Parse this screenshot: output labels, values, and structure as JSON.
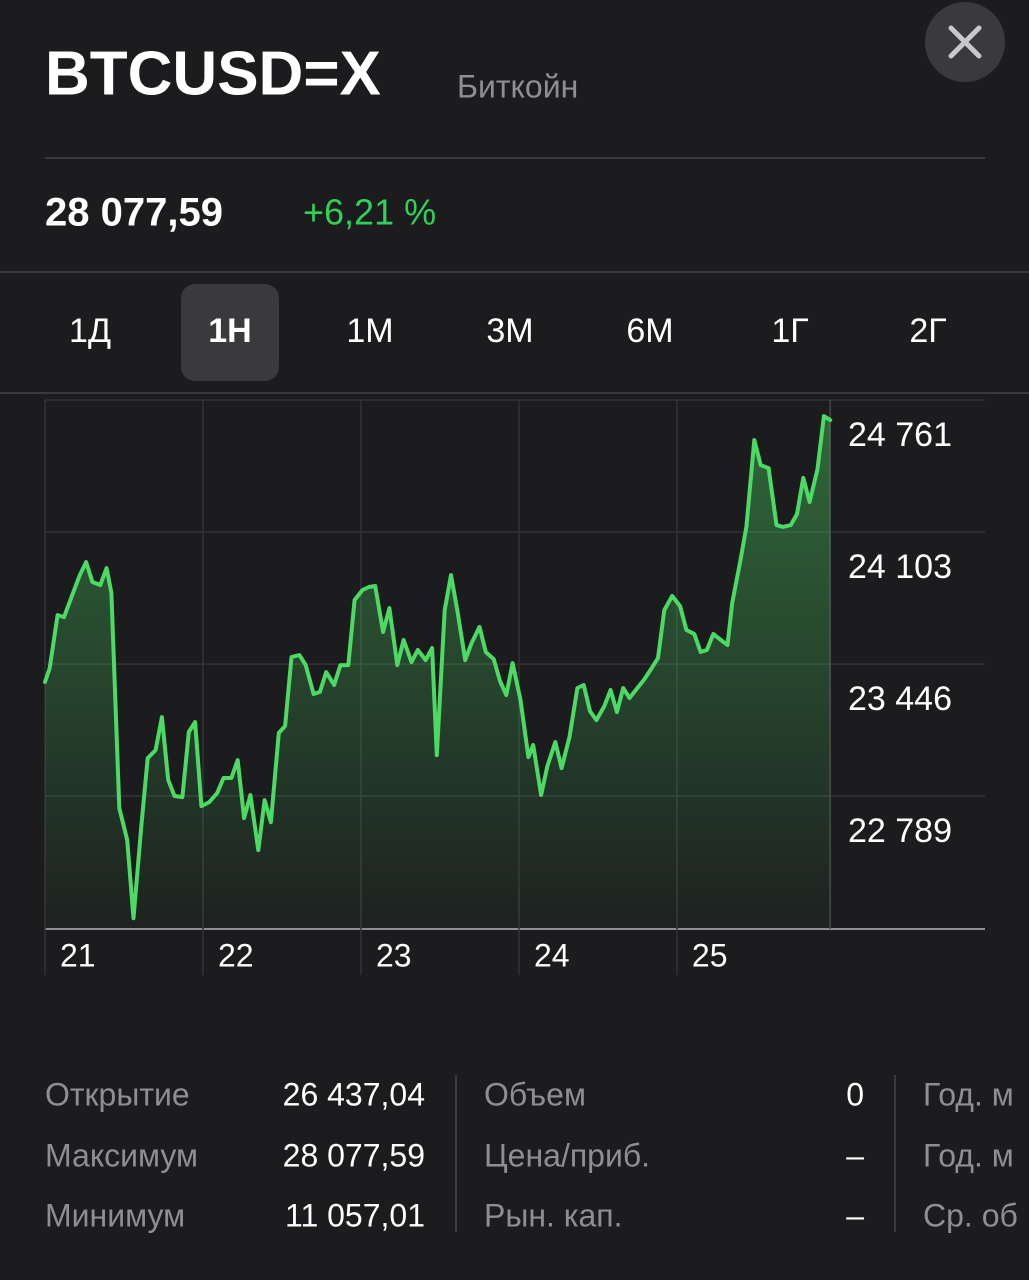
{
  "header": {
    "title": "BTCUSD=X",
    "subtitle": "Биткойн",
    "price": "28 077,59",
    "change": "+6,21 %"
  },
  "tabs": {
    "items": [
      "1Д",
      "1Н",
      "1М",
      "3М",
      "6М",
      "1Г",
      "2Г"
    ],
    "selected": 1
  },
  "chart_data": {
    "type": "area",
    "color": "#4cd964",
    "x": [
      21.0,
      21.03,
      21.08,
      21.12,
      21.17,
      21.22,
      21.26,
      21.3,
      21.35,
      21.39,
      21.42,
      21.47,
      21.52,
      21.56,
      21.61,
      21.65,
      21.7,
      21.74,
      21.78,
      21.82,
      21.87,
      21.91,
      21.95,
      21.99,
      22.04,
      22.09,
      22.13,
      22.18,
      22.22,
      22.26,
      22.3,
      22.35,
      22.39,
      22.43,
      22.48,
      22.52,
      22.56,
      22.61,
      22.65,
      22.7,
      22.74,
      22.78,
      22.83,
      22.87,
      22.92,
      22.96,
      23.01,
      23.05,
      23.09,
      23.14,
      23.18,
      23.23,
      23.27,
      23.32,
      23.36,
      23.41,
      23.45,
      23.48,
      23.53,
      23.57,
      23.61,
      23.66,
      23.7,
      23.75,
      23.79,
      23.84,
      23.88,
      23.92,
      23.96,
      24.01,
      24.06,
      24.09,
      24.14,
      24.18,
      24.23,
      24.27,
      24.32,
      24.37,
      24.41,
      24.45,
      24.49,
      24.54,
      24.58,
      24.62,
      24.66,
      24.7,
      24.75,
      24.79,
      24.84,
      24.88,
      24.92,
      24.97,
      25.02,
      25.06,
      25.11,
      25.15,
      25.19,
      25.23,
      25.27,
      25.32,
      25.35,
      25.4,
      25.44,
      25.49,
      25.53,
      25.58,
      25.63,
      25.67,
      25.72,
      25.76,
      25.8,
      25.84,
      25.89,
      25.93,
      25.97
    ],
    "values": [
      23357,
      23426,
      23690,
      23680,
      23785,
      23889,
      23954,
      23855,
      23840,
      23924,
      23800,
      22729,
      22570,
      22181,
      22644,
      22978,
      23018,
      23182,
      22869,
      22789,
      22784,
      23108,
      23157,
      22739,
      22759,
      22804,
      22879,
      22879,
      22968,
      22679,
      22794,
      22520,
      22769,
      22659,
      23103,
      23138,
      23481,
      23491,
      23441,
      23297,
      23307,
      23406,
      23342,
      23441,
      23441,
      23765,
      23815,
      23830,
      23835,
      23606,
      23725,
      23441,
      23566,
      23456,
      23516,
      23466,
      23526,
      22993,
      23715,
      23889,
      23715,
      23466,
      23551,
      23631,
      23506,
      23471,
      23362,
      23292,
      23451,
      23267,
      22983,
      23043,
      22794,
      22938,
      23058,
      22928,
      23083,
      23327,
      23342,
      23212,
      23167,
      23237,
      23317,
      23207,
      23327,
      23277,
      23327,
      23367,
      23426,
      23476,
      23715,
      23785,
      23735,
      23616,
      23596,
      23506,
      23516,
      23596,
      23571,
      23541,
      23750,
      23954,
      24129,
      24562,
      24437,
      24422,
      24138,
      24129,
      24138,
      24193,
      24373,
      24253,
      24417,
      24681,
      24661
    ],
    "xlim": [
      21,
      26.95
    ],
    "xticks": [
      21,
      22,
      23,
      24,
      25
    ],
    "ylim": [
      22127,
      24761
    ],
    "yticks": [
      {
        "value": 24761,
        "label": "24 761"
      },
      {
        "value": 24103,
        "label": "24 103"
      },
      {
        "value": 23446,
        "label": "23 446"
      },
      {
        "value": 22789,
        "label": "22 789"
      }
    ],
    "grid": true
  },
  "stats": {
    "columns": [
      [
        {
          "label": "Открытие",
          "value": "26 437,04"
        },
        {
          "label": "Максимум",
          "value": "28 077,59"
        },
        {
          "label": "Минимум",
          "value": "11 057,01"
        }
      ],
      [
        {
          "label": "Объем",
          "value": "0"
        },
        {
          "label": "Цена/приб.",
          "value": "–"
        },
        {
          "label": "Рын. кап.",
          "value": "–"
        }
      ],
      [
        {
          "label": "Год. м"
        },
        {
          "label": "Год. м"
        },
        {
          "label": "Ср. об"
        }
      ]
    ]
  }
}
